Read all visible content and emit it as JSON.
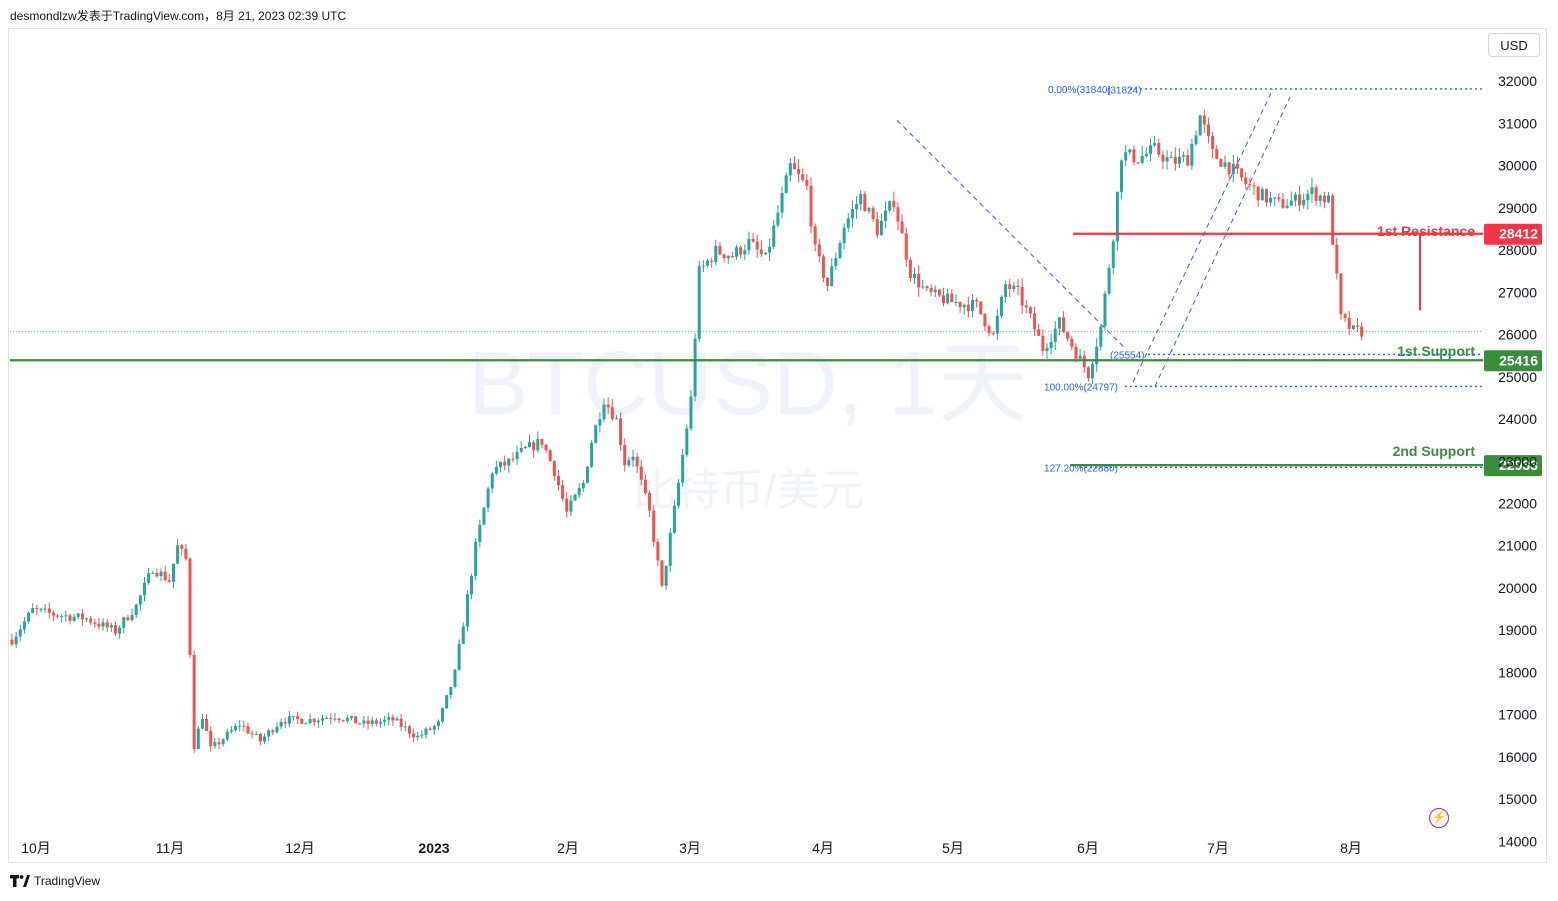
{
  "header": {
    "text": "desmondlzw发表于TradingView.com，8月 21, 2023 02:39 UTC"
  },
  "currency_button": "USD",
  "footer": {
    "brand": "TradingView"
  },
  "watermark": {
    "symbol": "BTCUSD, 1天",
    "description": "比特币/美元"
  },
  "colors": {
    "up": "#26a69a",
    "down": "#ef5350",
    "resistance": "#f23645",
    "support": "#388e3c",
    "fib": "#2962ff",
    "text": "#131722"
  },
  "chart_data": {
    "type": "candlestick",
    "symbol": "BTCUSD",
    "interval": "1天",
    "x_ticks": [
      "10月",
      "11月",
      "12月",
      "2023",
      "2月",
      "3月",
      "4月",
      "5月",
      "6月",
      "7月",
      "8月"
    ],
    "y_ticks": [
      14000,
      15000,
      16000,
      17000,
      18000,
      19000,
      20000,
      21000,
      22000,
      23000,
      24000,
      25000,
      26000,
      27000,
      28000,
      29000,
      30000,
      31000,
      32000
    ],
    "ylim": [
      13700,
      33000
    ],
    "current_price": 26100,
    "levels": [
      {
        "name": "1st Resistance",
        "value": 28412,
        "role": "resistance"
      },
      {
        "name": "1st Support",
        "value": 25416,
        "role": "support"
      },
      {
        "name": "2nd Support",
        "value": 22933,
        "role": "support"
      }
    ],
    "fib_labels": [
      {
        "text": "0.00%(31840)",
        "value": 31840
      },
      {
        "text": "(31824)",
        "value": 31824
      },
      {
        "text": "(25554)",
        "value": 25554
      },
      {
        "text": "100.00%(24797)",
        "value": 24797
      },
      {
        "text": "127.20%(22880)",
        "value": 22880
      }
    ],
    "price_path": [
      [
        0,
        18800
      ],
      [
        5,
        19500
      ],
      [
        10,
        19400
      ],
      [
        18,
        19300
      ],
      [
        25,
        19000
      ],
      [
        30,
        19600
      ],
      [
        34,
        20500
      ],
      [
        38,
        20200
      ],
      [
        40,
        21000
      ],
      [
        42,
        20700
      ],
      [
        44,
        16300
      ],
      [
        46,
        17000
      ],
      [
        48,
        16200
      ],
      [
        55,
        16800
      ],
      [
        60,
        16400
      ],
      [
        65,
        16900
      ],
      [
        72,
        16900
      ],
      [
        78,
        17000
      ],
      [
        85,
        16800
      ],
      [
        92,
        16900
      ],
      [
        98,
        16500
      ],
      [
        103,
        16800
      ],
      [
        107,
        18000
      ],
      [
        112,
        21000
      ],
      [
        116,
        22800
      ],
      [
        120,
        23000
      ],
      [
        124,
        23300
      ],
      [
        128,
        23500
      ],
      [
        131,
        22800
      ],
      [
        134,
        21800
      ],
      [
        138,
        22500
      ],
      [
        140,
        23500
      ],
      [
        143,
        24500
      ],
      [
        146,
        24000
      ],
      [
        148,
        23000
      ],
      [
        150,
        23200
      ],
      [
        154,
        21800
      ],
      [
        157,
        20000
      ],
      [
        161,
        22500
      ],
      [
        164,
        24500
      ],
      [
        166,
        27500
      ],
      [
        170,
        28000
      ],
      [
        174,
        27900
      ],
      [
        178,
        28200
      ],
      [
        182,
        27800
      ],
      [
        188,
        30000
      ],
      [
        192,
        29500
      ],
      [
        194,
        28000
      ],
      [
        197,
        27200
      ],
      [
        201,
        28600
      ],
      [
        205,
        29300
      ],
      [
        209,
        28500
      ],
      [
        213,
        29200
      ],
      [
        217,
        27500
      ],
      [
        221,
        27000
      ],
      [
        227,
        26800
      ],
      [
        233,
        26700
      ],
      [
        237,
        26000
      ],
      [
        240,
        27200
      ],
      [
        243,
        27000
      ],
      [
        246,
        26400
      ],
      [
        249,
        25700
      ],
      [
        253,
        26300
      ],
      [
        257,
        25600
      ],
      [
        260,
        25100
      ],
      [
        263,
        26200
      ],
      [
        266,
        28400
      ],
      [
        268,
        30300
      ],
      [
        272,
        30200
      ],
      [
        276,
        30400
      ],
      [
        280,
        30100
      ],
      [
        284,
        30200
      ],
      [
        287,
        31200
      ],
      [
        290,
        30300
      ],
      [
        294,
        30000
      ],
      [
        298,
        29600
      ],
      [
        302,
        29300
      ],
      [
        306,
        29100
      ],
      [
        310,
        29200
      ],
      [
        314,
        29400
      ],
      [
        318,
        29200
      ],
      [
        321,
        26400
      ],
      [
        324,
        26100
      ],
      [
        326,
        26100
      ]
    ]
  }
}
